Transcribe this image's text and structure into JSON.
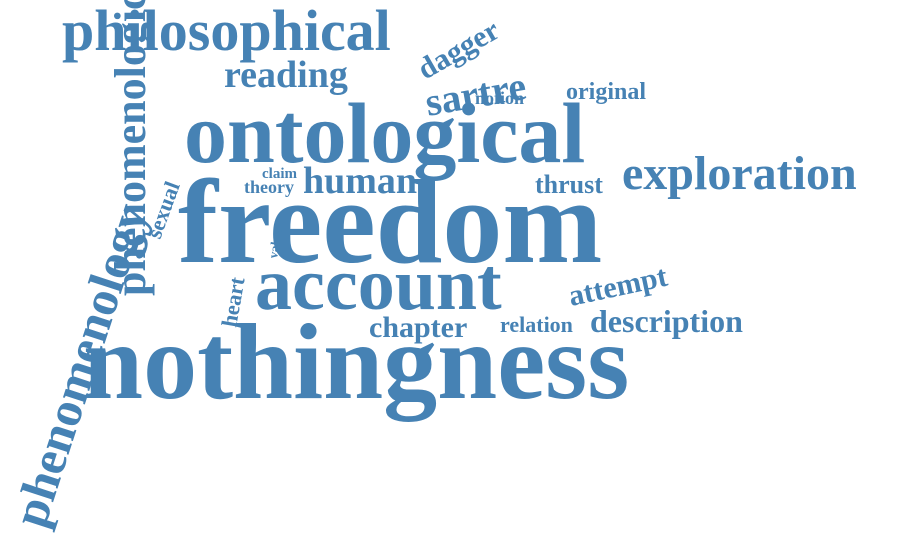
{
  "color": "#4682b4",
  "background": "#ffffff",
  "words": {
    "philosophical": "philosophical",
    "dagger": "dagger",
    "reading": "reading",
    "sartre": "sartre",
    "notion": "notion",
    "original": "original",
    "phenomenological_vertical": "phenomenological",
    "ontological": "ontological",
    "sexual": "sexual",
    "claim": "claim",
    "theory": "theory",
    "human": "human",
    "thrust": "thrust",
    "exploration": "exploration",
    "freedom": "freedom",
    "value": "value",
    "account": "account",
    "attempt": "attempt",
    "heart": "heart",
    "chapter": "chapter",
    "relation": "relation",
    "description": "description",
    "nothingness": "nothingness",
    "phenomenology": "phenomenology"
  }
}
